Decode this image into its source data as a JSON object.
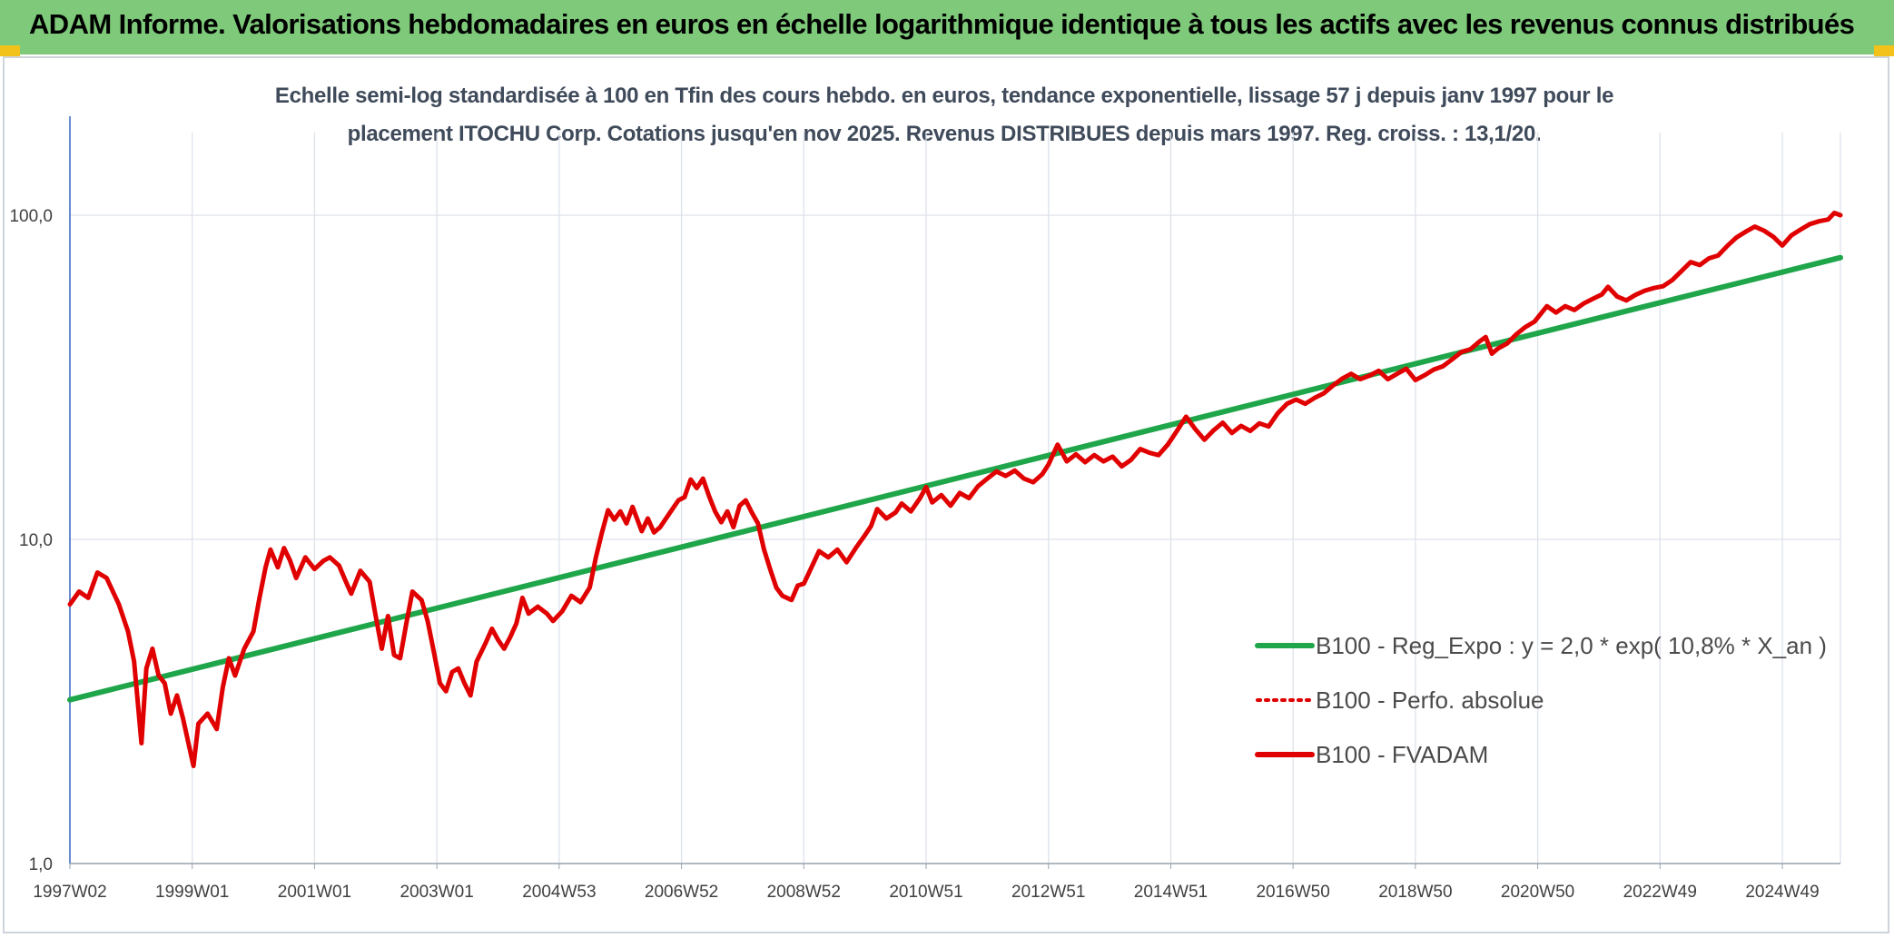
{
  "banner": {
    "title": "ADAM Informe. Valorisations hebdomadaires en euros en échelle logarithmique identique à tous les actifs avec les revenus connus distribués"
  },
  "chart_data": {
    "type": "line",
    "title_line1": "Echelle semi-log standardisée à 100 en Tfin des cours hebdo. en euros, tendance exponentielle, lissage 57 j depuis janv 1997 pour le",
    "title_line2": "placement ITOCHU Corp. Cotations jusqu'en nov 2025. Revenus DISTRIBUES depuis mars 1997. Reg. croiss. : 13,1/20.",
    "yscale": "log",
    "ylim": [
      1,
      100
    ],
    "ylim_display_top": 180,
    "xlim": [
      1997.0,
      2025.95
    ],
    "grid": true,
    "legend_position": "right",
    "y_ticks": [
      {
        "value": 1,
        "label": "1,0"
      },
      {
        "value": 10,
        "label": "10,0"
      },
      {
        "value": 100,
        "label": "100,0"
      }
    ],
    "x_ticks": [
      {
        "t": 1997.0,
        "label": "1997W02"
      },
      {
        "t": 1999.0,
        "label": "1999W01"
      },
      {
        "t": 2001.0,
        "label": "2001W01"
      },
      {
        "t": 2003.0,
        "label": "2003W01"
      },
      {
        "t": 2005.0,
        "label": "2004W53"
      },
      {
        "t": 2007.0,
        "label": "2006W52"
      },
      {
        "t": 2009.0,
        "label": "2008W52"
      },
      {
        "t": 2011.0,
        "label": "2010W51"
      },
      {
        "t": 2013.0,
        "label": "2012W51"
      },
      {
        "t": 2015.0,
        "label": "2014W51"
      },
      {
        "t": 2017.0,
        "label": "2016W50"
      },
      {
        "t": 2019.0,
        "label": "2018W50"
      },
      {
        "t": 2021.0,
        "label": "2020W50"
      },
      {
        "t": 2023.0,
        "label": "2022W49"
      },
      {
        "t": 2025.0,
        "label": "2024W49"
      }
    ],
    "series": [
      {
        "name": "B100 - Reg_Expo : y = 2,0 * exp( 10,8% * X_an )",
        "color": "#1fa64a",
        "style": "solid",
        "points": [
          [
            1997.0,
            3.2
          ],
          [
            2025.95,
            74.0
          ]
        ]
      },
      {
        "name": "B100 - Perfo. absolue",
        "color": "#e00000",
        "style": "dotted",
        "points": []
      },
      {
        "name": "B100 - FVADAM",
        "color": "#e00000",
        "style": "solid",
        "points": [
          [
            1997.0,
            6.3
          ],
          [
            1997.15,
            6.9
          ],
          [
            1997.3,
            6.6
          ],
          [
            1997.45,
            7.9
          ],
          [
            1997.6,
            7.6
          ],
          [
            1997.8,
            6.3
          ],
          [
            1997.95,
            5.2
          ],
          [
            1998.05,
            4.2
          ],
          [
            1998.12,
            3.0
          ],
          [
            1998.17,
            2.35
          ],
          [
            1998.25,
            4.0
          ],
          [
            1998.35,
            4.6
          ],
          [
            1998.45,
            3.8
          ],
          [
            1998.55,
            3.6
          ],
          [
            1998.65,
            2.9
          ],
          [
            1998.75,
            3.3
          ],
          [
            1998.85,
            2.8
          ],
          [
            1998.95,
            2.3
          ],
          [
            1999.02,
            2.0
          ],
          [
            1999.1,
            2.7
          ],
          [
            1999.25,
            2.9
          ],
          [
            1999.4,
            2.6
          ],
          [
            1999.5,
            3.5
          ],
          [
            1999.6,
            4.3
          ],
          [
            1999.7,
            3.8
          ],
          [
            1999.85,
            4.6
          ],
          [
            2000.0,
            5.2
          ],
          [
            2000.1,
            6.6
          ],
          [
            2000.2,
            8.2
          ],
          [
            2000.28,
            9.3
          ],
          [
            2000.4,
            8.2
          ],
          [
            2000.5,
            9.4
          ],
          [
            2000.6,
            8.6
          ],
          [
            2000.7,
            7.6
          ],
          [
            2000.85,
            8.8
          ],
          [
            2001.0,
            8.1
          ],
          [
            2001.15,
            8.6
          ],
          [
            2001.25,
            8.8
          ],
          [
            2001.4,
            8.3
          ],
          [
            2001.5,
            7.5
          ],
          [
            2001.6,
            6.8
          ],
          [
            2001.75,
            8.0
          ],
          [
            2001.9,
            7.4
          ],
          [
            2002.0,
            5.8
          ],
          [
            2002.1,
            4.6
          ],
          [
            2002.2,
            5.8
          ],
          [
            2002.3,
            4.4
          ],
          [
            2002.4,
            4.3
          ],
          [
            2002.5,
            5.5
          ],
          [
            2002.6,
            6.9
          ],
          [
            2002.75,
            6.5
          ],
          [
            2002.85,
            5.6
          ],
          [
            2002.95,
            4.5
          ],
          [
            2003.05,
            3.6
          ],
          [
            2003.15,
            3.4
          ],
          [
            2003.25,
            3.9
          ],
          [
            2003.35,
            4.0
          ],
          [
            2003.45,
            3.6
          ],
          [
            2003.55,
            3.3
          ],
          [
            2003.65,
            4.2
          ],
          [
            2003.8,
            4.8
          ],
          [
            2003.9,
            5.3
          ],
          [
            2004.0,
            4.9
          ],
          [
            2004.1,
            4.6
          ],
          [
            2004.2,
            5.0
          ],
          [
            2004.3,
            5.5
          ],
          [
            2004.4,
            6.6
          ],
          [
            2004.5,
            5.9
          ],
          [
            2004.65,
            6.2
          ],
          [
            2004.8,
            5.9
          ],
          [
            2004.9,
            5.6
          ],
          [
            2005.05,
            6.0
          ],
          [
            2005.2,
            6.7
          ],
          [
            2005.35,
            6.4
          ],
          [
            2005.5,
            7.1
          ],
          [
            2005.6,
            8.8
          ],
          [
            2005.7,
            10.5
          ],
          [
            2005.8,
            12.3
          ],
          [
            2005.9,
            11.5
          ],
          [
            2006.0,
            12.2
          ],
          [
            2006.1,
            11.2
          ],
          [
            2006.2,
            12.6
          ],
          [
            2006.35,
            10.6
          ],
          [
            2006.45,
            11.6
          ],
          [
            2006.55,
            10.5
          ],
          [
            2006.65,
            10.9
          ],
          [
            2006.8,
            12.0
          ],
          [
            2006.95,
            13.2
          ],
          [
            2007.05,
            13.5
          ],
          [
            2007.15,
            15.3
          ],
          [
            2007.25,
            14.4
          ],
          [
            2007.35,
            15.4
          ],
          [
            2007.45,
            13.6
          ],
          [
            2007.55,
            12.2
          ],
          [
            2007.65,
            11.3
          ],
          [
            2007.75,
            12.2
          ],
          [
            2007.85,
            10.9
          ],
          [
            2007.95,
            12.7
          ],
          [
            2008.05,
            13.2
          ],
          [
            2008.15,
            12.1
          ],
          [
            2008.25,
            11.2
          ],
          [
            2008.35,
            9.3
          ],
          [
            2008.45,
            8.1
          ],
          [
            2008.55,
            7.1
          ],
          [
            2008.65,
            6.7
          ],
          [
            2008.8,
            6.5
          ],
          [
            2008.9,
            7.2
          ],
          [
            2009.0,
            7.3
          ],
          [
            2009.1,
            8.0
          ],
          [
            2009.25,
            9.2
          ],
          [
            2009.4,
            8.8
          ],
          [
            2009.55,
            9.3
          ],
          [
            2009.7,
            8.5
          ],
          [
            2009.85,
            9.4
          ],
          [
            2010.0,
            10.3
          ],
          [
            2010.1,
            11.0
          ],
          [
            2010.2,
            12.4
          ],
          [
            2010.35,
            11.6
          ],
          [
            2010.5,
            12.1
          ],
          [
            2010.6,
            12.9
          ],
          [
            2010.75,
            12.2
          ],
          [
            2010.9,
            13.4
          ],
          [
            2011.0,
            14.5
          ],
          [
            2011.1,
            13.0
          ],
          [
            2011.25,
            13.7
          ],
          [
            2011.4,
            12.7
          ],
          [
            2011.55,
            13.9
          ],
          [
            2011.7,
            13.4
          ],
          [
            2011.85,
            14.6
          ],
          [
            2012.0,
            15.4
          ],
          [
            2012.15,
            16.2
          ],
          [
            2012.3,
            15.7
          ],
          [
            2012.45,
            16.3
          ],
          [
            2012.6,
            15.4
          ],
          [
            2012.75,
            15.0
          ],
          [
            2012.9,
            15.9
          ],
          [
            2013.0,
            17.0
          ],
          [
            2013.15,
            19.6
          ],
          [
            2013.3,
            17.4
          ],
          [
            2013.45,
            18.3
          ],
          [
            2013.6,
            17.3
          ],
          [
            2013.75,
            18.2
          ],
          [
            2013.9,
            17.4
          ],
          [
            2014.05,
            18.0
          ],
          [
            2014.2,
            16.8
          ],
          [
            2014.35,
            17.6
          ],
          [
            2014.5,
            19.0
          ],
          [
            2014.65,
            18.5
          ],
          [
            2014.8,
            18.2
          ],
          [
            2014.95,
            19.6
          ],
          [
            2015.1,
            21.6
          ],
          [
            2015.25,
            23.9
          ],
          [
            2015.4,
            21.9
          ],
          [
            2015.55,
            20.3
          ],
          [
            2015.7,
            21.7
          ],
          [
            2015.85,
            22.9
          ],
          [
            2016.0,
            21.3
          ],
          [
            2016.15,
            22.4
          ],
          [
            2016.3,
            21.6
          ],
          [
            2016.45,
            22.8
          ],
          [
            2016.6,
            22.3
          ],
          [
            2016.75,
            24.5
          ],
          [
            2016.9,
            26.2
          ],
          [
            2017.05,
            27.0
          ],
          [
            2017.2,
            26.2
          ],
          [
            2017.35,
            27.3
          ],
          [
            2017.5,
            28.2
          ],
          [
            2017.65,
            29.8
          ],
          [
            2017.8,
            31.3
          ],
          [
            2017.95,
            32.4
          ],
          [
            2018.1,
            31.2
          ],
          [
            2018.25,
            32.0
          ],
          [
            2018.4,
            33.1
          ],
          [
            2018.55,
            31.2
          ],
          [
            2018.7,
            32.4
          ],
          [
            2018.85,
            33.6
          ],
          [
            2019.0,
            31.0
          ],
          [
            2019.15,
            32.1
          ],
          [
            2019.3,
            33.4
          ],
          [
            2019.45,
            34.2
          ],
          [
            2019.6,
            35.9
          ],
          [
            2019.75,
            37.8
          ],
          [
            2019.9,
            38.6
          ],
          [
            2020.05,
            40.8
          ],
          [
            2020.15,
            42.1
          ],
          [
            2020.25,
            37.4
          ],
          [
            2020.35,
            38.8
          ],
          [
            2020.5,
            40.2
          ],
          [
            2020.65,
            42.9
          ],
          [
            2020.8,
            45.2
          ],
          [
            2020.95,
            47.0
          ],
          [
            2021.05,
            49.6
          ],
          [
            2021.15,
            52.4
          ],
          [
            2021.3,
            50.1
          ],
          [
            2021.45,
            52.4
          ],
          [
            2021.6,
            51.0
          ],
          [
            2021.75,
            53.4
          ],
          [
            2021.9,
            55.2
          ],
          [
            2022.05,
            57.0
          ],
          [
            2022.15,
            60.1
          ],
          [
            2022.3,
            56.1
          ],
          [
            2022.45,
            54.6
          ],
          [
            2022.6,
            56.8
          ],
          [
            2022.75,
            58.5
          ],
          [
            2022.9,
            59.6
          ],
          [
            2023.05,
            60.4
          ],
          [
            2023.2,
            63.1
          ],
          [
            2023.35,
            67.2
          ],
          [
            2023.5,
            71.7
          ],
          [
            2023.65,
            70.2
          ],
          [
            2023.8,
            73.6
          ],
          [
            2023.95,
            75.1
          ],
          [
            2024.1,
            80.4
          ],
          [
            2024.25,
            85.4
          ],
          [
            2024.4,
            88.9
          ],
          [
            2024.55,
            92.2
          ],
          [
            2024.7,
            89.6
          ],
          [
            2024.85,
            85.9
          ],
          [
            2025.0,
            80.6
          ],
          [
            2025.15,
            86.7
          ],
          [
            2025.3,
            90.3
          ],
          [
            2025.45,
            93.9
          ],
          [
            2025.6,
            95.8
          ],
          [
            2025.75,
            97.0
          ],
          [
            2025.85,
            101.6
          ],
          [
            2025.95,
            100.0
          ]
        ]
      }
    ]
  }
}
